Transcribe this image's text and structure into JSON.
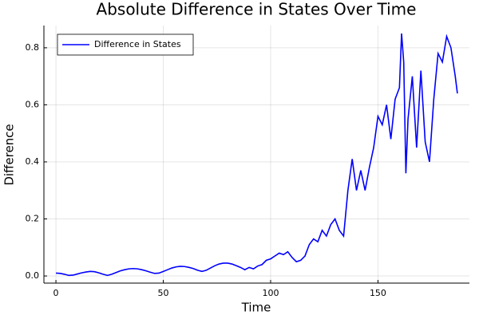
{
  "chart_data": {
    "type": "line",
    "title": "Absolute Difference in States Over Time",
    "x_label": "Time",
    "y_label": "Difference",
    "x": [
      0,
      2,
      4,
      6,
      8,
      10,
      12,
      14,
      16,
      18,
      20,
      22,
      24,
      26,
      28,
      30,
      32,
      34,
      36,
      38,
      40,
      42,
      44,
      46,
      48,
      50,
      52,
      54,
      56,
      58,
      60,
      62,
      64,
      66,
      68,
      70,
      72,
      74,
      76,
      78,
      80,
      82,
      84,
      86,
      88,
      90,
      92,
      94,
      96,
      98,
      100,
      102,
      104,
      106,
      108,
      110,
      112,
      114,
      116,
      118,
      120,
      122,
      124,
      126,
      128,
      130,
      132,
      134,
      136,
      138,
      140,
      142,
      144,
      146,
      148,
      150,
      152,
      154,
      156,
      158,
      160,
      161,
      162,
      163,
      164,
      166,
      168,
      170,
      172,
      174,
      176,
      178,
      180,
      182,
      184,
      186,
      187
    ],
    "series": [
      {
        "name": "Difference in States",
        "color": "#0000ff",
        "values": [
          0.01,
          0.009,
          0.006,
          0.002,
          0.003,
          0.007,
          0.011,
          0.014,
          0.016,
          0.015,
          0.011,
          0.006,
          0.002,
          0.006,
          0.012,
          0.018,
          0.022,
          0.025,
          0.026,
          0.025,
          0.022,
          0.018,
          0.013,
          0.009,
          0.01,
          0.016,
          0.022,
          0.028,
          0.032,
          0.034,
          0.033,
          0.03,
          0.026,
          0.02,
          0.016,
          0.02,
          0.028,
          0.036,
          0.042,
          0.045,
          0.045,
          0.042,
          0.036,
          0.03,
          0.022,
          0.03,
          0.025,
          0.035,
          0.04,
          0.055,
          0.06,
          0.07,
          0.08,
          0.075,
          0.085,
          0.065,
          0.05,
          0.055,
          0.07,
          0.11,
          0.13,
          0.12,
          0.16,
          0.14,
          0.18,
          0.2,
          0.16,
          0.14,
          0.3,
          0.41,
          0.3,
          0.37,
          0.3,
          0.38,
          0.45,
          0.56,
          0.53,
          0.6,
          0.48,
          0.62,
          0.66,
          0.85,
          0.75,
          0.36,
          0.55,
          0.7,
          0.45,
          0.72,
          0.47,
          0.4,
          0.62,
          0.78,
          0.75,
          0.84,
          0.8,
          0.7,
          0.64
        ]
      }
    ],
    "xlim": [
      -5.6,
      192.6
    ],
    "xticks": [
      0,
      50,
      100,
      150
    ],
    "ylim": [
      -0.025,
      0.878
    ],
    "yticks": [
      {
        "value": 0,
        "label": "0.0"
      },
      0.2,
      0.4,
      0.6,
      0.8
    ],
    "grid": true,
    "legend": "top-left"
  }
}
